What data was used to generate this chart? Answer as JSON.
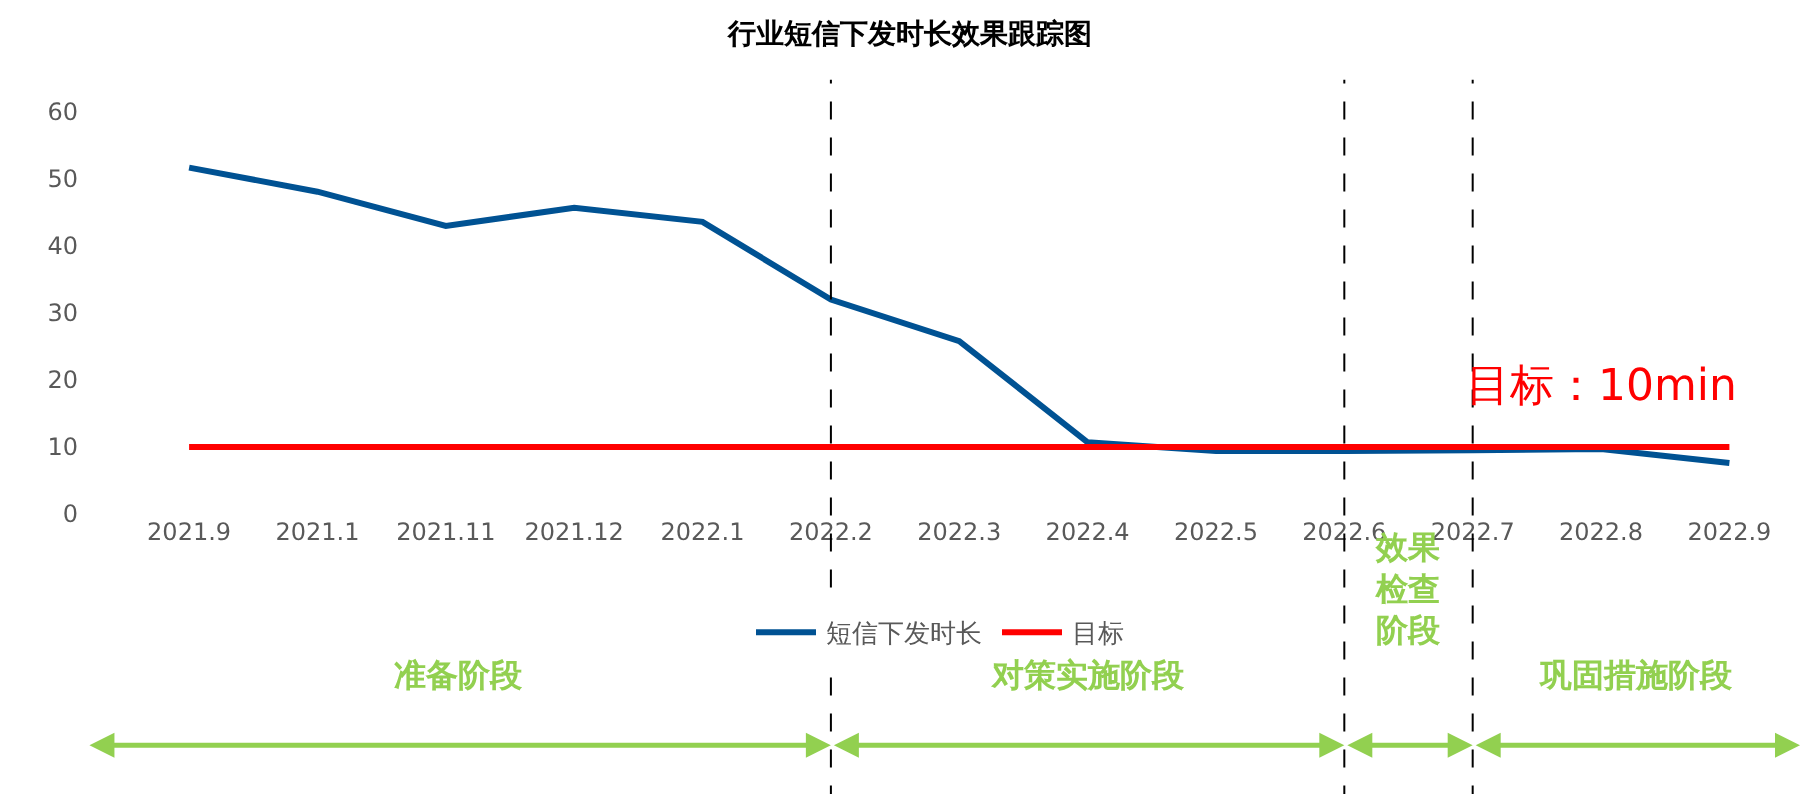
{
  "chart_data": {
    "type": "line",
    "title": "行业短信下发时长效果跟踪图",
    "categories": [
      "2021.9",
      "2021.1",
      "2021.11",
      "2021.12",
      "2022.1",
      "2022.2",
      "2022.3",
      "2022.4",
      "2022.5",
      "2022.6",
      "2022.7",
      "2022.8",
      "2022.9"
    ],
    "series": [
      {
        "name": "短信下发时长",
        "color": "#005293",
        "values": [
          51.7,
          48.1,
          43,
          45.7,
          43.6,
          32,
          25.8,
          10.7,
          9.4,
          9.4,
          9.5,
          9.7,
          7.6
        ]
      },
      {
        "name": "目标",
        "color": "#ff0000",
        "values": [
          10,
          10,
          10,
          10,
          10,
          10,
          10,
          10,
          10,
          10,
          10,
          10,
          10
        ]
      }
    ],
    "ylim": [
      0,
      60
    ],
    "yticks": [
      0,
      10,
      20,
      30,
      40,
      50,
      60
    ],
    "grid": false,
    "legend": "bottom",
    "marker": "none",
    "line_style": "solid",
    "ref_lines": [
      {
        "axis": "x",
        "value": "2022.2",
        "line_style": "dashed",
        "color": "#000000"
      },
      {
        "axis": "x",
        "value": "2022.6",
        "line_style": "dashed",
        "color": "#000000"
      },
      {
        "axis": "x",
        "value": "2022.7",
        "line_style": "dashed",
        "color": "#000000"
      }
    ],
    "annotations": [
      "准备阶段",
      "对策实施阶段",
      "效果检查阶段",
      "巩固措施阶段",
      {
        "text": "目标：10min",
        "x": "2022.8",
        "y": 10
      }
    ]
  }
}
